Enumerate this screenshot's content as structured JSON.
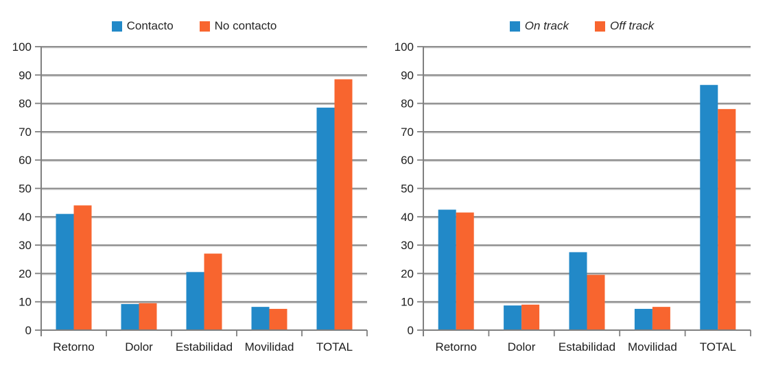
{
  "colors": {
    "series_blue": "#2289c8",
    "series_orange": "#f8652f",
    "grid_line": "#7f7f7f",
    "grid_shadow": "#c2c2c2",
    "tick_text": "#1d1d1d",
    "legend_text": "#262626",
    "background": "#ffffff"
  },
  "chart_data": [
    {
      "type": "bar",
      "title": "",
      "categories": [
        "Retorno",
        "Dolor",
        "Estabilidad",
        "Movilidad",
        "TOTAL"
      ],
      "series": [
        {
          "name": "Contacto",
          "color": "#2289c8",
          "values": [
            41,
            9.2,
            20.5,
            8.2,
            78.5
          ]
        },
        {
          "name": "No contacto",
          "color": "#f8652f",
          "values": [
            44,
            9.5,
            27,
            7.5,
            88.5
          ]
        }
      ],
      "xlabel": "",
      "ylabel": "",
      "ylim": [
        0,
        100
      ],
      "ytick_step": 10,
      "grid": true,
      "legend_position": "top",
      "legend_italic": false
    },
    {
      "type": "bar",
      "title": "",
      "categories": [
        "Retorno",
        "Dolor",
        "Estabilidad",
        "Movilidad",
        "TOTAL"
      ],
      "series": [
        {
          "name": "On track",
          "color": "#2289c8",
          "values": [
            42.5,
            8.7,
            27.5,
            7.5,
            86.5
          ]
        },
        {
          "name": "Off track",
          "color": "#f8652f",
          "values": [
            41.5,
            9,
            19.5,
            8.2,
            78
          ]
        }
      ],
      "xlabel": "",
      "ylabel": "",
      "ylim": [
        0,
        100
      ],
      "ytick_step": 10,
      "grid": true,
      "legend_position": "top",
      "legend_italic": true
    }
  ]
}
